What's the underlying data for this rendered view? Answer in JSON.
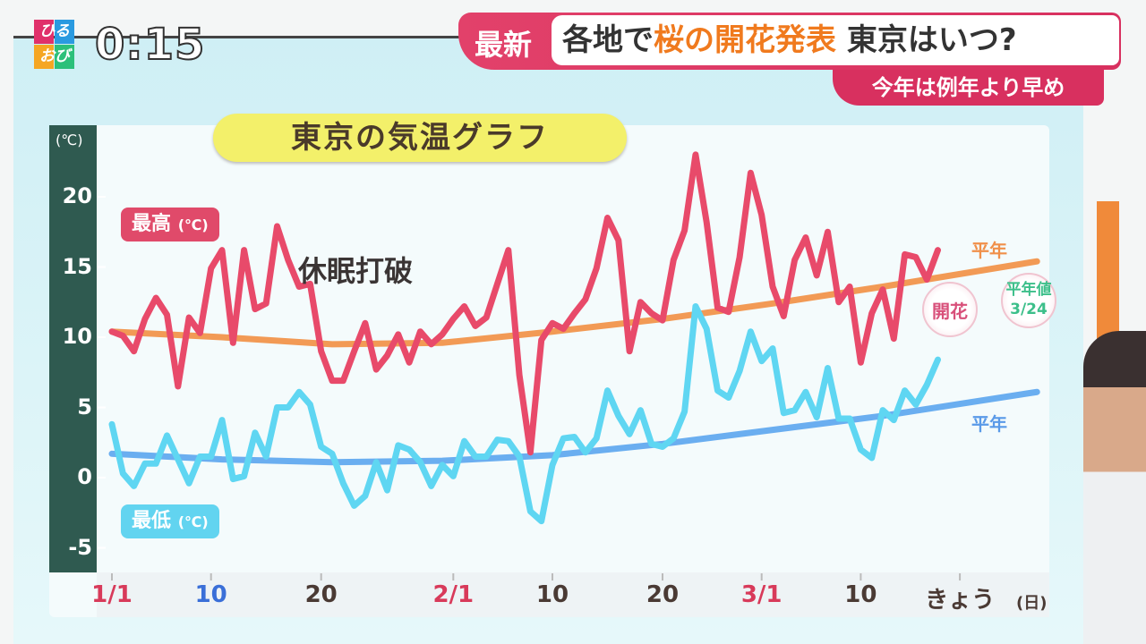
{
  "header": {
    "logo_top": "ひる",
    "logo_bottom": "おび",
    "clock": "0:15",
    "badge": "最新",
    "headline_pre": "各地で",
    "headline_accent": "桜の開花発表",
    "headline_post": "東京はいつ?",
    "subheadline": "今年は例年より早め"
  },
  "colors": {
    "high": "#e84a6a",
    "low": "#5fd6f2",
    "normal_high": "#f29a55",
    "normal_low": "#6aaef0",
    "accent": "#f07a1e",
    "banner": "#d8305f"
  },
  "chart_data": {
    "type": "line",
    "title": "東京の気温グラフ",
    "ylabel": "(℃)",
    "xlabel": "(日)",
    "ylim": [
      -5,
      23
    ],
    "yticks": [
      "20",
      "15",
      "10",
      "5",
      "0",
      "-5"
    ],
    "ytick_values": [
      20,
      15,
      10,
      5,
      0,
      -5
    ],
    "xticks": [
      {
        "label": "1/1",
        "day": 0,
        "color": "#d83a5a"
      },
      {
        "label": "10",
        "day": 9,
        "color": "#3a6fd8"
      },
      {
        "label": "20",
        "day": 19,
        "color": "#4a3a34"
      },
      {
        "label": "2/1",
        "day": 31,
        "color": "#d83a5a"
      },
      {
        "label": "10",
        "day": 40,
        "color": "#4a3a34"
      },
      {
        "label": "20",
        "day": 50,
        "color": "#4a3a34"
      },
      {
        "label": "3/1",
        "day": 59,
        "color": "#d83a5a"
      },
      {
        "label": "10",
        "day": 68,
        "color": "#4a3a34"
      },
      {
        "label": "きょう",
        "day": 77,
        "color": "#4a3a34"
      }
    ],
    "series": [
      {
        "name": "最高(℃)",
        "values": [
          10.4,
          10.1,
          9.0,
          11.3,
          12.8,
          11.6,
          6.5,
          11.4,
          10.3,
          14.9,
          16.2,
          9.6,
          16.2,
          12.0,
          12.4,
          17.9,
          15.5,
          13.6,
          13.8,
          9.0,
          6.9,
          6.9,
          9.0,
          11.0,
          7.7,
          8.7,
          10.2,
          8.2,
          10.4,
          9.5,
          10.2,
          11.3,
          12.2,
          10.8,
          11.4,
          13.8,
          16.2,
          7.3,
          1.8,
          9.8,
          11.0,
          10.6,
          11.7,
          12.7,
          14.9,
          18.5,
          16.9,
          9.0,
          12.5,
          11.7,
          11.2,
          15.5,
          17.6,
          23.0,
          18.2,
          12.1,
          11.8,
          15.7,
          21.7,
          18.7,
          13.6,
          11.5,
          15.5,
          17.1,
          14.4,
          17.5,
          12.5,
          13.6,
          8.2,
          11.7,
          13.4,
          9.9,
          15.9,
          15.7,
          14.1,
          16.2
        ]
      },
      {
        "name": "最低(℃)",
        "values": [
          3.8,
          0.3,
          -0.6,
          1.0,
          1.0,
          3.0,
          1.3,
          -0.4,
          1.5,
          1.5,
          4.1,
          -0.1,
          0.1,
          3.2,
          1.5,
          5.0,
          5.0,
          6.1,
          5.2,
          2.2,
          1.7,
          -0.4,
          -2.0,
          -1.3,
          1.1,
          -0.9,
          2.3,
          2.0,
          1.1,
          -0.6,
          0.9,
          0.1,
          2.6,
          1.5,
          1.5,
          2.7,
          2.6,
          1.5,
          -2.4,
          -3.1,
          0.9,
          2.8,
          2.9,
          1.8,
          2.8,
          6.2,
          4.4,
          3.1,
          4.8,
          2.4,
          2.2,
          2.8,
          4.7,
          12.2,
          10.6,
          6.2,
          5.7,
          7.6,
          10.4,
          8.3,
          9.2,
          4.6,
          4.8,
          6.1,
          4.3,
          7.8,
          4.2,
          4.2,
          2.0,
          1.4,
          4.8,
          4.1,
          6.2,
          5.2,
          6.6,
          8.4
        ]
      },
      {
        "name": "平年(最高)",
        "points": [
          [
            0,
            10.4
          ],
          [
            10,
            10.0
          ],
          [
            20,
            9.5
          ],
          [
            30,
            9.6
          ],
          [
            40,
            10.4
          ],
          [
            50,
            11.3
          ],
          [
            60,
            12.4
          ],
          [
            70,
            13.6
          ],
          [
            84,
            15.4
          ]
        ]
      },
      {
        "name": "平年(最低)",
        "points": [
          [
            0,
            1.7
          ],
          [
            10,
            1.3
          ],
          [
            20,
            1.1
          ],
          [
            30,
            1.2
          ],
          [
            40,
            1.6
          ],
          [
            50,
            2.4
          ],
          [
            60,
            3.4
          ],
          [
            70,
            4.4
          ],
          [
            84,
            6.1
          ]
        ]
      }
    ],
    "annotations": {
      "high_label": "最高",
      "low_label": "最低",
      "unit": "(℃)",
      "dormancy": "休眠打破",
      "normal_high": "平年",
      "normal_low": "平年",
      "bloom": "開花",
      "normal_bloom_label": "平年値",
      "normal_bloom_date": "3/24"
    }
  }
}
